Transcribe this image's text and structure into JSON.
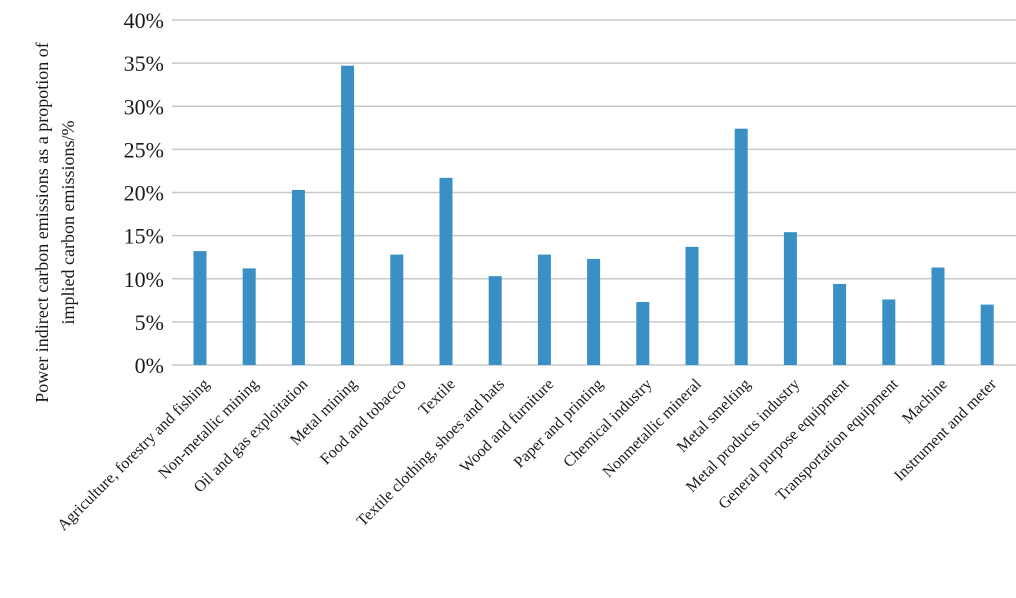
{
  "chart_data": {
    "type": "bar",
    "title": "",
    "xlabel": "",
    "ylabel": "Power indirect carbon emissions as a propotion of implied carbon emissions/%",
    "ylabel_lines": [
      "Power indirect carbon emissions as a propotion of",
      "implied carbon emissions/%"
    ],
    "ylim": [
      0,
      40
    ],
    "yticks": [
      0,
      5,
      10,
      15,
      20,
      25,
      30,
      35,
      40
    ],
    "ytick_labels": [
      "0%",
      "5%",
      "10%",
      "15%",
      "20%",
      "25%",
      "30%",
      "35%",
      "40%"
    ],
    "grid": true,
    "legend": "none",
    "bar_color": "#3a8fc4",
    "grid_color": "#c8c8c8",
    "categories": [
      "Agriculture, forestry and fishing",
      "Non-metallic mining",
      "Oil and gas exploitation",
      "Metal mining",
      "Food and tobacco",
      "Textile",
      "Textile clothing, shoes and hats",
      "Wood and furniture",
      "Paper and printing",
      "Chemical industry",
      "Nonmetallic mineral",
      "Metal smelting",
      "Metal products industry",
      "General purpose equipment",
      "Transportation equipment",
      "Machine",
      "Instrument and meter"
    ],
    "values": [
      13.2,
      11.2,
      20.3,
      34.7,
      12.8,
      21.7,
      10.3,
      12.8,
      12.3,
      7.3,
      13.7,
      27.4,
      15.4,
      9.4,
      7.6,
      11.3,
      7.0
    ]
  }
}
